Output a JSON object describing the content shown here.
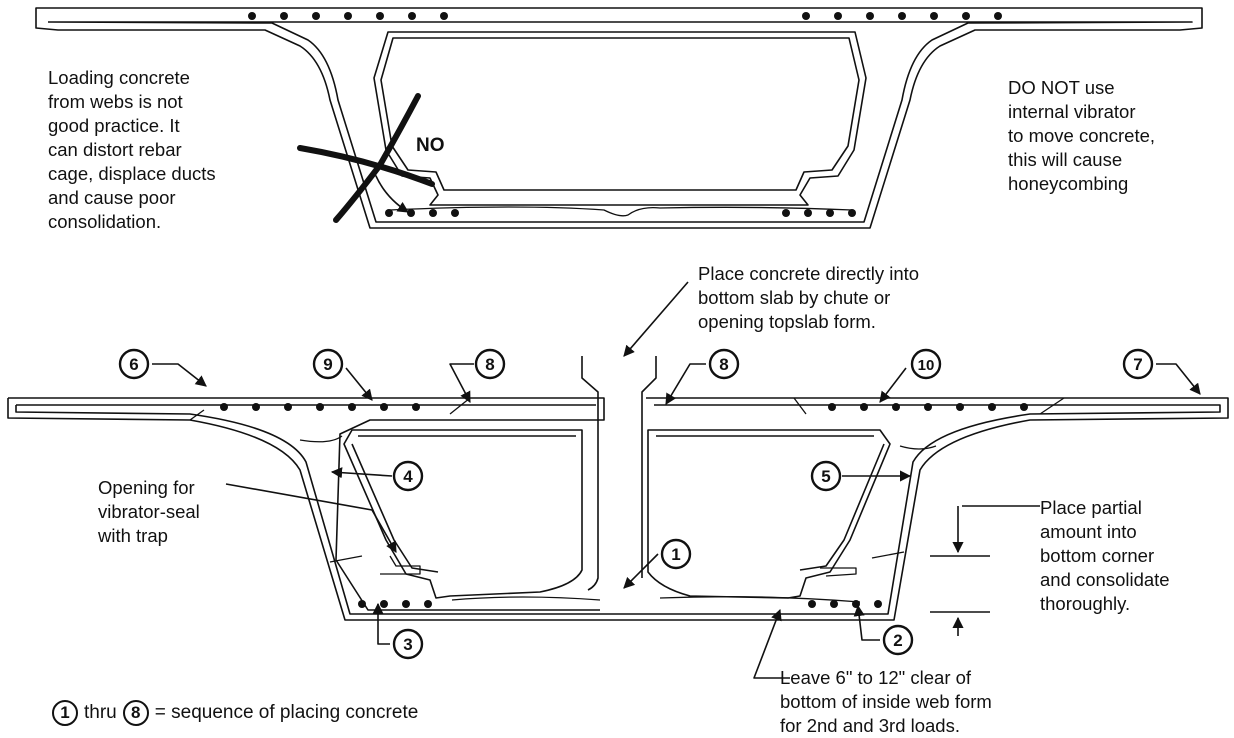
{
  "notes": {
    "loading_webs": [
      "Loading concrete",
      "from webs is not",
      "good practice. It",
      "can distort rebar",
      "cage, displace ducts",
      "and cause poor",
      "consolidation."
    ],
    "no_vibrator": [
      "DO NOT use",
      "internal vibrator",
      "to move concrete,",
      "this will cause",
      "honeycombing"
    ],
    "no_label": "NO",
    "chute": [
      "Place concrete directly into",
      "bottom slab by chute or",
      "opening topslab form."
    ],
    "vibrator_opening": [
      "Opening for",
      "vibrator-seal",
      "with trap"
    ],
    "partial": [
      "Place partial",
      "amount into",
      "bottom corner",
      "and consolidate",
      "thoroughly."
    ],
    "clearance": [
      "Leave 6\" to 12\" clear of",
      "bottom of inside web form",
      "for 2nd and 3rd loads."
    ]
  },
  "sequence_labels": [
    "1",
    "2",
    "3",
    "4",
    "5",
    "6",
    "7",
    "8",
    "8",
    "9",
    "10"
  ],
  "legend": {
    "from": "1",
    "thru": "thru",
    "to": "8",
    "text": "= sequence of placing concrete"
  }
}
